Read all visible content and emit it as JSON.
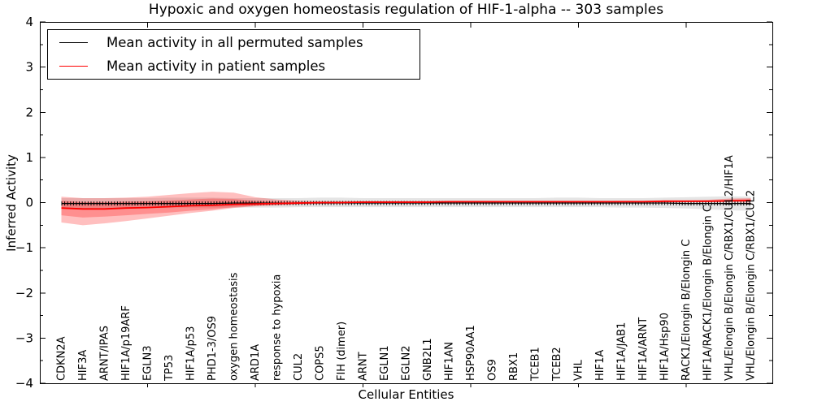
{
  "figure": {
    "title": "Hypoxic and oxygen homeostasis regulation of HIF-1-alpha -- 303 samples",
    "xlabel": "Cellular Entities",
    "ylabel": "Inferred Activity"
  },
  "legend": {
    "items": [
      {
        "label": "Mean activity in all permuted samples",
        "color": "#000000"
      },
      {
        "label": "Mean activity in patient samples",
        "color": "#ff0000"
      }
    ]
  },
  "chart_data": {
    "type": "line",
    "title": "Hypoxic and oxygen homeostasis regulation of HIF-1-alpha -- 303 samples",
    "xlabel": "Cellular Entities",
    "ylabel": "Inferred Activity",
    "ylim": [
      -4,
      4
    ],
    "xlim": [
      0,
      34
    ],
    "grid": false,
    "legend_position": "upper left",
    "frame_color": "#000000",
    "categories": [
      "CDKN2A",
      "HIF3A",
      "ARNT/IPAS",
      "HIF1A/p19ARF",
      "EGLN3",
      "TP53",
      "HIF1A/p53",
      "PHD1-3/OS9",
      "oxygen homeostasis",
      "ARD1A",
      "response to hypoxia",
      "CUL2",
      "COPS5",
      "FIH (dimer)",
      "ARNT",
      "EGLN1",
      "EGLN2",
      "GNB2L1",
      "HIF1AN",
      "HSP90AA1",
      "OS9",
      "RBX1",
      "TCEB1",
      "TCEB2",
      "VHL",
      "HIF1A",
      "HIF1A/JAB1",
      "HIF1A/ARNT",
      "HIF1A/Hsp90",
      "RACK1/Elongin B/Elongin C",
      "HIF1A/RACK1/Elongin B/Elongin C",
      "VHL/Elongin B/Elongin C/RBX1/CUL2/HIF1A",
      "VHL/Elongin B/Elongin C/RBX1/CUL2"
    ],
    "series": [
      {
        "name": "Mean activity in all permuted samples",
        "color": "#000000",
        "marker": "dense-vertical-ticks",
        "values": [
          -0.02,
          -0.02,
          -0.02,
          -0.02,
          -0.02,
          -0.02,
          -0.02,
          -0.02,
          -0.01,
          -0.01,
          -0.01,
          -0.01,
          -0.01,
          -0.01,
          -0.01,
          -0.01,
          -0.01,
          -0.01,
          -0.01,
          -0.01,
          -0.01,
          -0.01,
          -0.01,
          -0.01,
          -0.01,
          -0.01,
          -0.01,
          -0.01,
          -0.01,
          -0.02,
          -0.02,
          -0.02,
          -0.02
        ]
      },
      {
        "name": "Mean activity in patient samples",
        "color": "#ff0000",
        "marker": "none",
        "values": [
          -0.12,
          -0.14,
          -0.14,
          -0.12,
          -0.11,
          -0.09,
          -0.07,
          -0.06,
          -0.04,
          -0.03,
          -0.02,
          -0.01,
          0,
          0,
          0.01,
          0.01,
          0.01,
          0.01,
          0.02,
          0.02,
          0.02,
          0.02,
          0.02,
          0.02,
          0.02,
          0.02,
          0.02,
          0.02,
          0.03,
          0.03,
          0.03,
          0.04,
          0.05
        ]
      }
    ],
    "bands": [
      {
        "name": "permuted-samples-band",
        "color": "rgba(0,0,0,0.10)",
        "top": [
          0.1,
          0.1,
          0.1,
          0.1,
          0.1,
          0.11,
          0.11,
          0.11,
          0.1,
          0.1,
          0.1,
          0.1,
          0.11,
          0.11,
          0.1,
          0.1,
          0.1,
          0.1,
          0.1,
          0.1,
          0.1,
          0.1,
          0.1,
          0.11,
          0.11,
          0.1,
          0.1,
          0.1,
          0.11,
          0.12,
          0.13,
          0.14,
          0.13
        ],
        "bottom": [
          -0.13,
          -0.13,
          -0.12,
          -0.12,
          -0.12,
          -0.12,
          -0.11,
          -0.11,
          -0.11,
          -0.11,
          -0.11,
          -0.1,
          -0.1,
          -0.1,
          -0.1,
          -0.1,
          -0.1,
          -0.1,
          -0.1,
          -0.1,
          -0.1,
          -0.1,
          -0.1,
          -0.1,
          -0.1,
          -0.1,
          -0.11,
          -0.11,
          -0.12,
          -0.13,
          -0.15,
          -0.17,
          -0.18
        ]
      },
      {
        "name": "patient-samples-band-outer",
        "color": "rgba(255,0,0,0.25)",
        "top": [
          0.13,
          0.1,
          0.1,
          0.11,
          0.13,
          0.17,
          0.21,
          0.24,
          0.22,
          0.12,
          0.07,
          0.04,
          0.03,
          0.03,
          0.03,
          0.03,
          0.03,
          0.03,
          0.03,
          0.03,
          0.03,
          0.03,
          0.03,
          0.03,
          0.03,
          0.03,
          0.04,
          0.04,
          0.05,
          0.05,
          0.06,
          0.09,
          0.1
        ],
        "bottom": [
          -0.44,
          -0.5,
          -0.46,
          -0.41,
          -0.35,
          -0.29,
          -0.23,
          -0.18,
          -0.12,
          -0.08,
          -0.06,
          -0.04,
          -0.03,
          -0.02,
          -0.01,
          -0.01,
          -0.01,
          -0.01,
          0,
          0,
          0,
          0,
          0,
          0,
          0,
          0,
          0,
          0,
          0,
          0.01,
          0.01,
          0.01,
          0
        ]
      },
      {
        "name": "patient-samples-band-inner",
        "color": "rgba(255,0,0,0.25)",
        "top": [
          0.04,
          0.01,
          0.01,
          0.02,
          0.03,
          0.05,
          0.07,
          0.09,
          0.08,
          0.04,
          0.02,
          0.01,
          0.01,
          0.01,
          0.02,
          0.02,
          0.02,
          0.02,
          0.02,
          0.02,
          0.02,
          0.02,
          0.02,
          0.02,
          0.02,
          0.02,
          0.02,
          0.03,
          0.03,
          0.03,
          0.04,
          0.06,
          0.07
        ],
        "bottom": [
          -0.28,
          -0.33,
          -0.31,
          -0.28,
          -0.25,
          -0.22,
          -0.18,
          -0.15,
          -0.1,
          -0.07,
          -0.05,
          -0.03,
          -0.02,
          -0.01,
          -0.01,
          0,
          0,
          0,
          0,
          0,
          0,
          0,
          0,
          0,
          0,
          0,
          0.01,
          0.01,
          0.01,
          0.02,
          0.02,
          0.02,
          0.02
        ]
      }
    ],
    "yticks": {
      "values": [
        4,
        3,
        2,
        1,
        0,
        -1,
        -2,
        -3,
        -4
      ],
      "labels": [
        "4",
        "3",
        "2",
        "1",
        "0",
        "−1",
        "−2",
        "−3",
        "−4"
      ],
      "minor_step": 0.5
    },
    "xticks_major": [
      5,
      10,
      15,
      20,
      25,
      30
    ]
  }
}
